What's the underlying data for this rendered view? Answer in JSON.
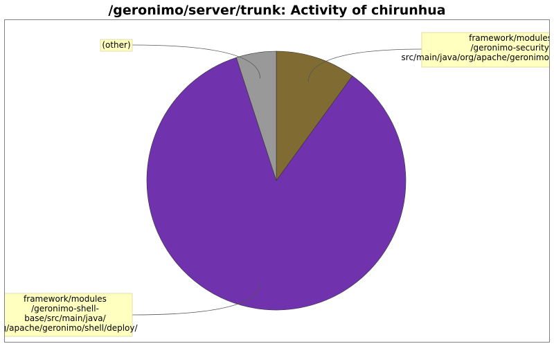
{
  "chart_data": {
    "type": "pie",
    "title": "/geronimo/server/trunk: Activity of chirunhua",
    "slices": [
      {
        "label": "framework/modules\n/geronimo-security/\nsrc/main/java/org/apache/geronimo/",
        "value": 10,
        "color": "#806c33"
      },
      {
        "label": "framework/modules\n/geronimo-shell-\nbase/src/main/java/\norg/apache/geronimo/shell/deploy/",
        "value": 85,
        "color": "#7033ad"
      },
      {
        "label": "(other)",
        "value": 5,
        "color": "#999999"
      }
    ],
    "start_angle_deg": 90,
    "direction": "clockwise",
    "legend": "none",
    "label_box_color": "#ffffc0",
    "plot_border_color": "#808080"
  }
}
